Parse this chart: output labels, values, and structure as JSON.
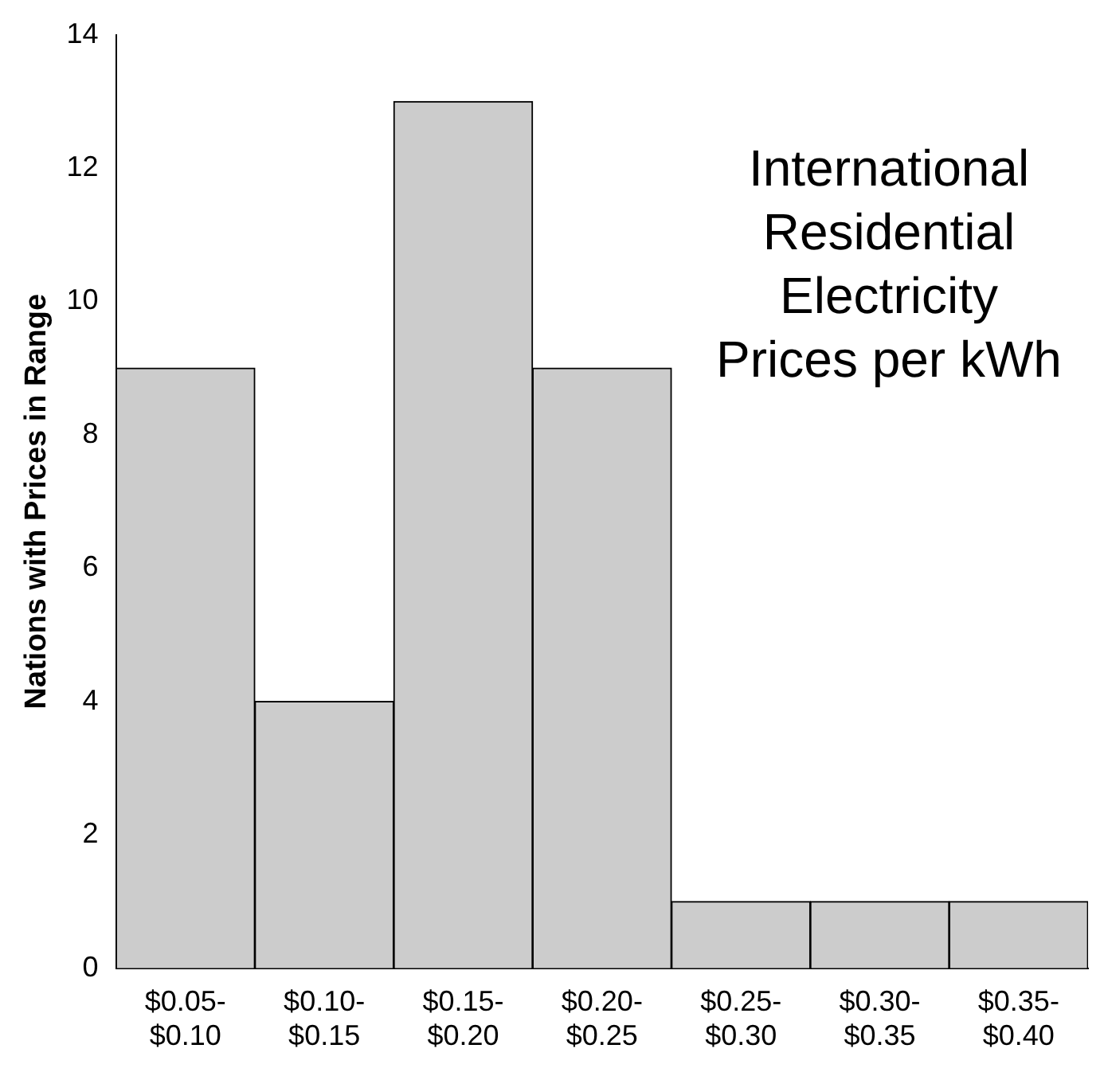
{
  "chart_data": {
    "type": "bar",
    "title": "International Residential Electricity Prices per kWh",
    "ylabel": "Nations with Prices in Range",
    "categories": [
      "$0.05-$0.10",
      "$0.10-$0.15",
      "$0.15-$0.20",
      "$0.20-$0.25",
      "$0.25-$0.30",
      "$0.30-$0.35",
      "$0.35-$0.40"
    ],
    "values": [
      9,
      4,
      13,
      9,
      1,
      1,
      1
    ],
    "color": "#cccccc",
    "ylim": [
      0,
      14
    ],
    "yticks": [
      0,
      2,
      4,
      6,
      8,
      10,
      12,
      14
    ],
    "grid": false,
    "legend": false
  }
}
